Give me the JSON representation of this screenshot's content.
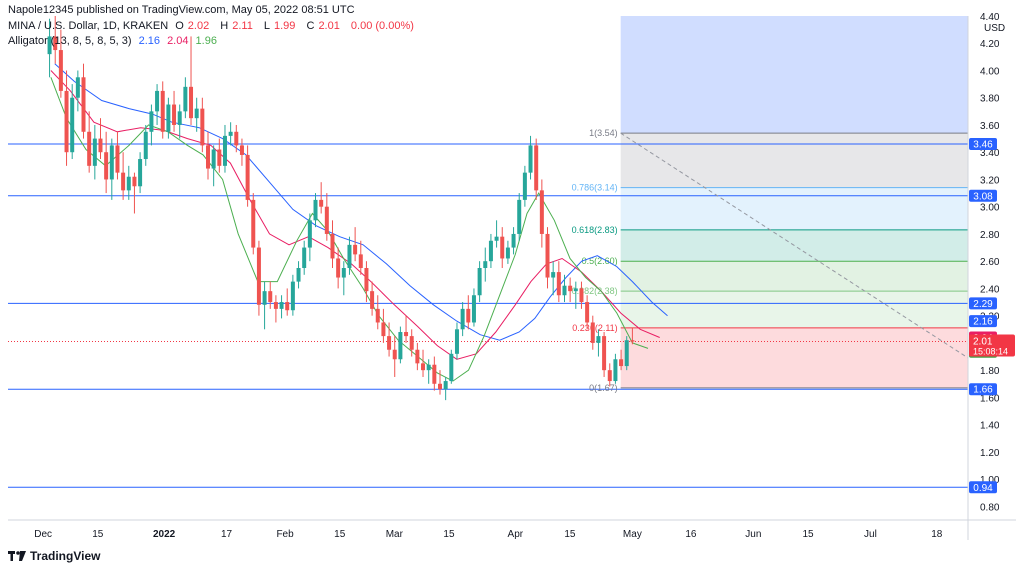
{
  "header": {
    "publisher": "Napole12345 published on TradingView.com, May 05, 2022 08:51 UTC",
    "symbol": "MINA / U.S. Dollar, 1D, KRAKEN",
    "ohlc": [
      {
        "label": "O",
        "value": "2.02"
      },
      {
        "label": "H",
        "value": "2.11"
      },
      {
        "label": "L",
        "value": "1.99"
      },
      {
        "label": "C",
        "value": "2.01"
      },
      {
        "label": "",
        "value": "0.00 (0.00%)"
      }
    ],
    "indicator_name": "Alligator (13, 8, 5, 8, 5, 3)",
    "indicator_values": [
      {
        "value": "2.16",
        "color": "#2962ff"
      },
      {
        "value": "2.04",
        "color": "#e91e63"
      },
      {
        "value": "1.96",
        "color": "#4caf50"
      }
    ]
  },
  "footer": {
    "logo": "TradingView"
  },
  "chart_data": {
    "type": "candlestick",
    "currency": "USD",
    "y_ticks": [
      "4.40",
      "4.20",
      "4.00",
      "3.80",
      "3.60",
      "3.40",
      "3.20",
      "3.00",
      "2.80",
      "2.60",
      "2.40",
      "2.20",
      "2.00",
      "1.80",
      "1.60",
      "1.40",
      "1.20",
      "1.00",
      "0.80"
    ],
    "ylim": [
      0.7,
      4.4
    ],
    "x_ticks": [
      {
        "label": "Dec",
        "day": 0
      },
      {
        "label": "15",
        "day": 14
      },
      {
        "label": "2022",
        "day": 31
      },
      {
        "label": "17",
        "day": 47
      },
      {
        "label": "Feb",
        "day": 62
      },
      {
        "label": "15",
        "day": 76
      },
      {
        "label": "Mar",
        "day": 90
      },
      {
        "label": "15",
        "day": 104
      },
      {
        "label": "Apr",
        "day": 121
      },
      {
        "label": "15",
        "day": 135
      },
      {
        "label": "May",
        "day": 151
      },
      {
        "label": "16",
        "day": 166
      },
      {
        "label": "Jun",
        "day": 182
      },
      {
        "label": "15",
        "day": 196
      },
      {
        "label": "Jul",
        "day": 212
      },
      {
        "label": "18",
        "day": 229
      }
    ],
    "xlim": [
      -9,
      237
    ],
    "horizontal_levels": [
      {
        "value": 3.46,
        "label": "3.46"
      },
      {
        "value": 3.08,
        "label": "3.08"
      },
      {
        "value": 2.29,
        "label": "2.29"
      },
      {
        "value": 1.66,
        "label": "1.66"
      },
      {
        "value": 0.94,
        "label": "0.94"
      }
    ],
    "fib": {
      "levels": [
        {
          "value": 3.54,
          "label": "1(3.54)",
          "color": "#787b86"
        },
        {
          "value": 3.14,
          "label": "0.786(3.14)",
          "color": "#64b5f6"
        },
        {
          "value": 2.83,
          "label": "0.618(2.83)",
          "color": "#089981"
        },
        {
          "value": 2.6,
          "label": "0.5(2.60)",
          "color": "#4caf50"
        },
        {
          "value": 2.38,
          "label": "0.382(2.38)",
          "color": "#81c784"
        },
        {
          "value": 2.11,
          "label": "0.236(2.11)",
          "color": "#f23645"
        },
        {
          "value": 1.67,
          "label": "0(1.67)",
          "color": "#787b86"
        }
      ]
    },
    "price_labels": [
      {
        "value": 2.16,
        "label": "2.16",
        "color": "#2962ff"
      },
      {
        "value": 2.04,
        "label": "2.04",
        "color": "#e91e63"
      },
      {
        "value": 1.96,
        "label": "1.96",
        "color": "#43a047"
      }
    ],
    "last_price": {
      "value": 2.01,
      "label": "2.01",
      "countdown": "15:08:14",
      "color": "#f23645"
    },
    "colors": {
      "up": "#26a69a",
      "down": "#ef5350",
      "jaw": "#2962ff",
      "teeth": "#e91e63",
      "lips": "#4caf50"
    },
    "candles": [
      [
        4.12,
        4.38,
        3.95,
        4.25
      ],
      [
        4.25,
        4.4,
        4.05,
        4.15
      ],
      [
        4.15,
        4.3,
        3.8,
        3.85
      ],
      [
        3.85,
        4.0,
        3.3,
        3.4
      ],
      [
        3.4,
        3.9,
        3.35,
        3.8
      ],
      [
        3.8,
        4.0,
        3.7,
        3.95
      ],
      [
        3.95,
        4.05,
        3.5,
        3.55
      ],
      [
        3.55,
        3.7,
        3.25,
        3.3
      ],
      [
        3.3,
        3.6,
        3.2,
        3.5
      ],
      [
        3.5,
        3.65,
        3.35,
        3.4
      ],
      [
        3.4,
        3.55,
        3.1,
        3.2
      ],
      [
        3.2,
        3.5,
        3.05,
        3.45
      ],
      [
        3.45,
        3.55,
        3.2,
        3.25
      ],
      [
        3.25,
        3.4,
        3.05,
        3.12
      ],
      [
        3.12,
        3.3,
        3.05,
        3.22
      ],
      [
        3.22,
        3.25,
        2.95,
        3.15
      ],
      [
        3.15,
        3.4,
        3.1,
        3.35
      ],
      [
        3.35,
        3.6,
        3.3,
        3.55
      ],
      [
        3.55,
        3.75,
        3.45,
        3.7
      ],
      [
        3.7,
        3.9,
        3.6,
        3.85
      ],
      [
        3.85,
        3.92,
        3.5,
        3.55
      ],
      [
        3.55,
        3.8,
        3.5,
        3.75
      ],
      [
        3.75,
        3.85,
        3.55,
        3.6
      ],
      [
        3.6,
        3.75,
        3.5,
        3.7
      ],
      [
        3.7,
        3.95,
        3.65,
        3.88
      ],
      [
        3.88,
        4.25,
        3.6,
        3.65
      ],
      [
        3.65,
        3.8,
        3.55,
        3.72
      ],
      [
        3.72,
        3.8,
        3.4,
        3.45
      ],
      [
        3.45,
        3.55,
        3.2,
        3.28
      ],
      [
        3.28,
        3.45,
        3.15,
        3.42
      ],
      [
        3.42,
        3.5,
        3.25,
        3.3
      ],
      [
        3.3,
        3.6,
        3.25,
        3.52
      ],
      [
        3.52,
        3.62,
        3.45,
        3.55
      ],
      [
        3.55,
        3.6,
        3.4,
        3.45
      ],
      [
        3.45,
        3.5,
        3.3,
        3.38
      ],
      [
        3.38,
        3.45,
        3.0,
        3.05
      ],
      [
        3.05,
        3.1,
        2.65,
        2.7
      ],
      [
        2.7,
        2.75,
        2.2,
        2.28
      ],
      [
        2.28,
        2.45,
        2.1,
        2.38
      ],
      [
        2.38,
        2.45,
        2.25,
        2.3
      ],
      [
        2.3,
        2.35,
        2.15,
        2.25
      ],
      [
        2.25,
        2.35,
        2.18,
        2.3
      ],
      [
        2.3,
        2.4,
        2.2,
        2.24
      ],
      [
        2.24,
        2.5,
        2.2,
        2.45
      ],
      [
        2.45,
        2.6,
        2.4,
        2.55
      ],
      [
        2.55,
        2.75,
        2.5,
        2.7
      ],
      [
        2.7,
        2.95,
        2.6,
        2.9
      ],
      [
        2.9,
        3.1,
        2.85,
        3.05
      ],
      [
        3.05,
        3.18,
        2.95,
        3.0
      ],
      [
        3.0,
        3.1,
        2.75,
        2.8
      ],
      [
        2.8,
        2.9,
        2.55,
        2.62
      ],
      [
        2.62,
        2.7,
        2.4,
        2.48
      ],
      [
        2.48,
        2.6,
        2.35,
        2.55
      ],
      [
        2.55,
        2.78,
        2.5,
        2.72
      ],
      [
        2.72,
        2.85,
        2.6,
        2.65
      ],
      [
        2.65,
        2.75,
        2.5,
        2.55
      ],
      [
        2.55,
        2.6,
        2.3,
        2.38
      ],
      [
        2.38,
        2.45,
        2.2,
        2.25
      ],
      [
        2.25,
        2.35,
        2.1,
        2.15
      ],
      [
        2.15,
        2.25,
        2.0,
        2.05
      ],
      [
        2.05,
        2.15,
        1.9,
        1.95
      ],
      [
        1.95,
        2.05,
        1.75,
        1.88
      ],
      [
        1.88,
        2.12,
        1.85,
        2.08
      ],
      [
        2.08,
        2.2,
        2.0,
        2.05
      ],
      [
        2.05,
        2.1,
        1.9,
        1.95
      ],
      [
        1.95,
        2.0,
        1.8,
        1.85
      ],
      [
        1.85,
        1.95,
        1.75,
        1.8
      ],
      [
        1.8,
        1.88,
        1.7,
        1.84
      ],
      [
        1.84,
        1.9,
        1.65,
        1.7
      ],
      [
        1.7,
        1.8,
        1.62,
        1.66
      ],
      [
        1.66,
        1.75,
        1.58,
        1.72
      ],
      [
        1.72,
        1.95,
        1.7,
        1.92
      ],
      [
        1.92,
        2.15,
        1.88,
        2.1
      ],
      [
        2.1,
        2.3,
        2.05,
        2.25
      ],
      [
        2.25,
        2.35,
        2.1,
        2.15
      ],
      [
        2.15,
        2.4,
        2.12,
        2.35
      ],
      [
        2.35,
        2.6,
        2.3,
        2.55
      ],
      [
        2.55,
        2.7,
        2.45,
        2.6
      ],
      [
        2.6,
        2.8,
        2.55,
        2.75
      ],
      [
        2.75,
        2.9,
        2.7,
        2.78
      ],
      [
        2.78,
        2.85,
        2.55,
        2.62
      ],
      [
        2.62,
        2.75,
        2.58,
        2.7
      ],
      [
        2.7,
        2.85,
        2.65,
        2.8
      ],
      [
        2.8,
        3.1,
        2.75,
        3.05
      ],
      [
        3.05,
        3.3,
        3.0,
        3.25
      ],
      [
        3.25,
        3.52,
        3.2,
        3.45
      ],
      [
        3.45,
        3.5,
        3.05,
        3.12
      ],
      [
        3.12,
        3.2,
        2.7,
        2.8
      ],
      [
        2.8,
        2.85,
        2.4,
        2.48
      ],
      [
        2.48,
        2.6,
        2.35,
        2.52
      ],
      [
        2.52,
        2.6,
        2.3,
        2.35
      ],
      [
        2.35,
        2.5,
        2.3,
        2.42
      ],
      [
        2.42,
        2.48,
        2.3,
        2.38
      ],
      [
        2.38,
        2.45,
        2.25,
        2.4
      ],
      [
        2.4,
        2.45,
        2.25,
        2.3
      ],
      [
        2.3,
        2.35,
        2.1,
        2.15
      ],
      [
        2.15,
        2.2,
        1.95,
        2.0
      ],
      [
        2.0,
        2.1,
        1.9,
        2.05
      ],
      [
        2.05,
        2.08,
        1.75,
        1.8
      ],
      [
        1.8,
        1.85,
        1.68,
        1.72
      ],
      [
        1.72,
        1.92,
        1.7,
        1.88
      ],
      [
        1.88,
        1.95,
        1.8,
        1.83
      ],
      [
        1.83,
        2.05,
        1.8,
        2.02
      ],
      [
        2.02,
        2.11,
        1.99,
        2.01
      ]
    ],
    "alligator_jaw": [
      [
        3,
        4.05
      ],
      [
        8,
        3.92
      ],
      [
        15,
        3.78
      ],
      [
        22,
        3.72
      ],
      [
        28,
        3.68
      ],
      [
        33,
        3.62
      ],
      [
        40,
        3.58
      ],
      [
        46,
        3.5
      ],
      [
        52,
        3.38
      ],
      [
        58,
        3.18
      ],
      [
        64,
        2.98
      ],
      [
        70,
        2.86
      ],
      [
        76,
        2.78
      ],
      [
        82,
        2.72
      ],
      [
        88,
        2.58
      ],
      [
        94,
        2.42
      ],
      [
        100,
        2.28
      ],
      [
        106,
        2.16
      ],
      [
        112,
        2.06
      ],
      [
        117,
        2.02
      ],
      [
        122,
        2.08
      ],
      [
        126,
        2.18
      ],
      [
        130,
        2.34
      ],
      [
        134,
        2.48
      ],
      [
        138,
        2.6
      ],
      [
        142,
        2.64
      ],
      [
        147,
        2.56
      ],
      [
        151,
        2.45
      ],
      [
        156,
        2.3
      ],
      [
        160,
        2.2
      ]
    ],
    "alligator_teeth": [
      [
        2,
        4.0
      ],
      [
        7,
        3.85
      ],
      [
        13,
        3.62
      ],
      [
        19,
        3.55
      ],
      [
        25,
        3.58
      ],
      [
        31,
        3.56
      ],
      [
        37,
        3.5
      ],
      [
        43,
        3.45
      ],
      [
        48,
        3.32
      ],
      [
        53,
        3.05
      ],
      [
        58,
        2.8
      ],
      [
        63,
        2.72
      ],
      [
        68,
        2.78
      ],
      [
        73,
        2.7
      ],
      [
        79,
        2.58
      ],
      [
        84,
        2.45
      ],
      [
        90,
        2.28
      ],
      [
        96,
        2.12
      ],
      [
        101,
        1.98
      ],
      [
        106,
        1.88
      ],
      [
        111,
        1.92
      ],
      [
        116,
        2.08
      ],
      [
        121,
        2.28
      ],
      [
        125,
        2.45
      ],
      [
        129,
        2.58
      ],
      [
        133,
        2.62
      ],
      [
        138,
        2.52
      ],
      [
        143,
        2.38
      ],
      [
        148,
        2.22
      ],
      [
        153,
        2.1
      ],
      [
        158,
        2.04
      ]
    ],
    "alligator_lips": [
      [
        2,
        3.95
      ],
      [
        6,
        3.65
      ],
      [
        11,
        3.42
      ],
      [
        16,
        3.3
      ],
      [
        22,
        3.45
      ],
      [
        27,
        3.6
      ],
      [
        32,
        3.55
      ],
      [
        37,
        3.45
      ],
      [
        41,
        3.38
      ],
      [
        46,
        3.2
      ],
      [
        50,
        2.8
      ],
      [
        55,
        2.45
      ],
      [
        60,
        2.45
      ],
      [
        65,
        2.75
      ],
      [
        69,
        2.95
      ],
      [
        73,
        2.82
      ],
      [
        77,
        2.62
      ],
      [
        82,
        2.4
      ],
      [
        86,
        2.2
      ],
      [
        91,
        2.02
      ],
      [
        96,
        1.9
      ],
      [
        101,
        1.78
      ],
      [
        105,
        1.72
      ],
      [
        109,
        1.8
      ],
      [
        113,
        2.05
      ],
      [
        117,
        2.35
      ],
      [
        121,
        2.65
      ],
      [
        124,
        2.95
      ],
      [
        127,
        3.1
      ],
      [
        131,
        2.9
      ],
      [
        135,
        2.62
      ],
      [
        139,
        2.48
      ],
      [
        143,
        2.38
      ],
      [
        147,
        2.22
      ],
      [
        151,
        2.0
      ],
      [
        155,
        1.96
      ]
    ]
  }
}
